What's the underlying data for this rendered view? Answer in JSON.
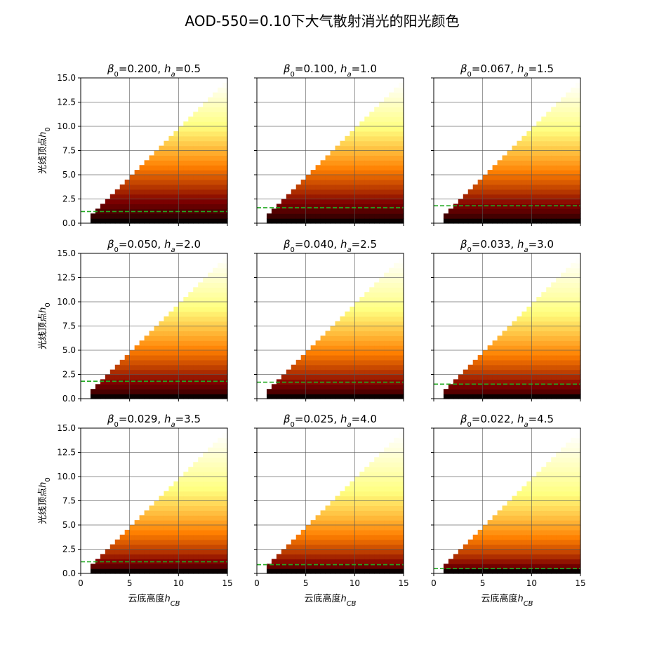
{
  "figure": {
    "title": "AOD-550=0.10下大气散射消光的阳光颜色"
  },
  "chart_data": {
    "type": "heatmap",
    "title": "AOD-550=0.10下大气散射消光的阳光颜色",
    "xlabel": "云底高度h_CB",
    "ylabel": "光线顶点h_0",
    "xlim": [
      0,
      15
    ],
    "ylim": [
      0,
      15
    ],
    "xticks": [
      "0",
      "5",
      "10",
      "15"
    ],
    "yticks": [
      "0.0",
      "2.5",
      "5.0",
      "7.5",
      "10.0",
      "12.5",
      "15.0"
    ],
    "grid": true,
    "colormap": "afmhot",
    "valid_region": "h_0 < h_CB",
    "reference_line_color": "#22aa22",
    "panels": [
      {
        "beta0": "0.200",
        "ha": "0.5",
        "dashed_line_h0": 1.2
      },
      {
        "beta0": "0.100",
        "ha": "1.0",
        "dashed_line_h0": 1.6
      },
      {
        "beta0": "0.067",
        "ha": "1.5",
        "dashed_line_h0": 1.8
      },
      {
        "beta0": "0.050",
        "ha": "2.0",
        "dashed_line_h0": 1.8
      },
      {
        "beta0": "0.040",
        "ha": "2.5",
        "dashed_line_h0": 1.7
      },
      {
        "beta0": "0.033",
        "ha": "3.0",
        "dashed_line_h0": 1.5
      },
      {
        "beta0": "0.029",
        "ha": "3.5",
        "dashed_line_h0": 1.2
      },
      {
        "beta0": "0.025",
        "ha": "4.0",
        "dashed_line_h0": 0.9
      },
      {
        "beta0": "0.022",
        "ha": "4.5",
        "dashed_line_h0": 0.5
      }
    ]
  }
}
